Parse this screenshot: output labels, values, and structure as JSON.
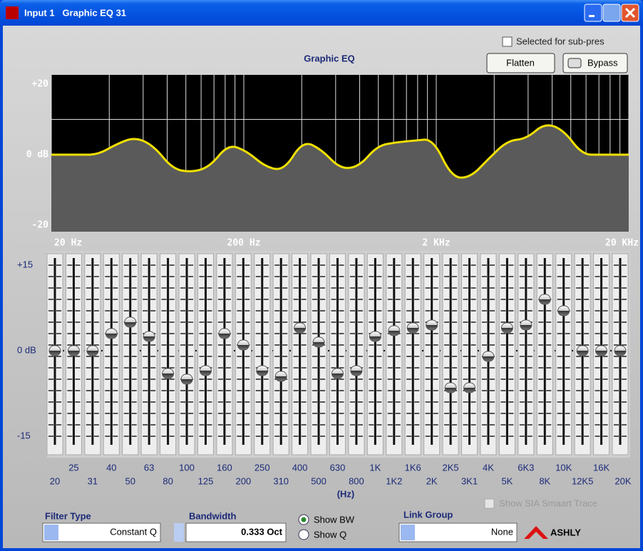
{
  "window": {
    "title": "Input 1   Graphic EQ 31"
  },
  "header": {
    "sub_pres": "Selected for sub-pres",
    "title": "Graphic EQ",
    "flatten": "Flatten",
    "bypass": "Bypass"
  },
  "graph": {
    "range": [
      -20,
      20
    ],
    "y_labels": [
      "+20",
      "0 dB",
      "-20"
    ],
    "x_labels": [
      "20 Hz",
      "200 Hz",
      "2 KHz",
      "20 KHz"
    ]
  },
  "sliders": {
    "range": [
      -15,
      15
    ],
    "scale_labels": [
      "+15",
      "0 dB",
      "-15"
    ],
    "unit": "(Hz)",
    "bands": [
      {
        "label": "20",
        "gain": 0
      },
      {
        "label": "25",
        "gain": 0
      },
      {
        "label": "31",
        "gain": 0
      },
      {
        "label": "40",
        "gain": 3
      },
      {
        "label": "50",
        "gain": 5
      },
      {
        "label": "63",
        "gain": 2.5
      },
      {
        "label": "80",
        "gain": -4
      },
      {
        "label": "100",
        "gain": -5
      },
      {
        "label": "125",
        "gain": -3.5
      },
      {
        "label": "160",
        "gain": 3
      },
      {
        "label": "200",
        "gain": 1
      },
      {
        "label": "250",
        "gain": -3.5
      },
      {
        "label": "310",
        "gain": -4.5
      },
      {
        "label": "400",
        "gain": 4
      },
      {
        "label": "500",
        "gain": 1.5
      },
      {
        "label": "630",
        "gain": -4
      },
      {
        "label": "800",
        "gain": -3.5
      },
      {
        "label": "1K",
        "gain": 2.5
      },
      {
        "label": "1K2",
        "gain": 3.5
      },
      {
        "label": "1K6",
        "gain": 4
      },
      {
        "label": "2K",
        "gain": 4.5
      },
      {
        "label": "2K5",
        "gain": -6.5
      },
      {
        "label": "3K1",
        "gain": -6.5
      },
      {
        "label": "4K",
        "gain": -1
      },
      {
        "label": "5K",
        "gain": 4
      },
      {
        "label": "6K3",
        "gain": 4.5
      },
      {
        "label": "8K",
        "gain": 9
      },
      {
        "label": "10K",
        "gain": 7
      },
      {
        "label": "12K5",
        "gain": 0
      },
      {
        "label": "16K",
        "gain": 0
      },
      {
        "label": "20K",
        "gain": 0
      }
    ]
  },
  "controls": {
    "filter_type_label": "Filter Type",
    "filter_type": "Constant Q",
    "bandwidth_label": "Bandwidth",
    "bandwidth": "0.333 Oct",
    "show_bw": "Show BW",
    "show_q": "Show Q",
    "link_group_label": "Link Group",
    "link_group": "None",
    "smaart": "Show SIA Smaart Trace",
    "logo": "ASHLY"
  }
}
